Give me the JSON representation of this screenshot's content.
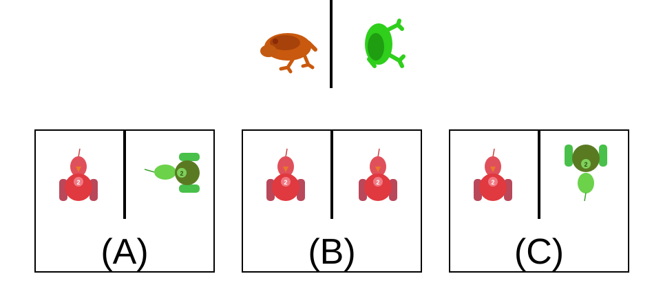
{
  "prompt": {
    "left_item": "orange-frog",
    "right_item": "green-frog"
  },
  "options": [
    {
      "label": "(A)",
      "left_item": "red-toy-car-upright",
      "right_item": "green-toy-car-rotated-right"
    },
    {
      "label": "(B)",
      "left_item": "red-toy-car-upright",
      "right_item": "red-toy-car-upright"
    },
    {
      "label": "(C)",
      "left_item": "red-toy-car-upright",
      "right_item": "green-toy-car-upside-down"
    }
  ],
  "colors": {
    "frog_orange": "#c8590e",
    "frog_green": "#2fcf1c",
    "car_red": "#e0393f",
    "car_green": "#54b82c"
  }
}
